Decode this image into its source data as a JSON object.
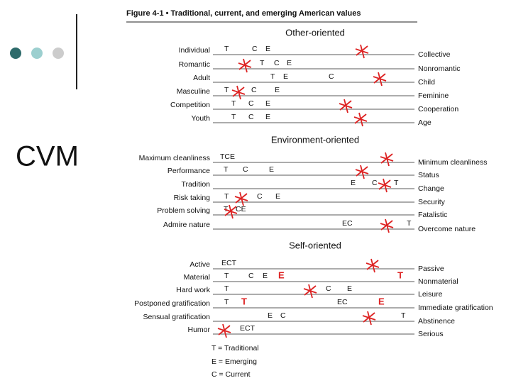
{
  "slide_title": "CVM",
  "figure": {
    "title": "Figure 4-1 • Traditional, current, and emerging American values",
    "sections": [
      {
        "heading": "Other-oriented",
        "rows": [
          {
            "left": "Individual",
            "right": "Collective",
            "marks": [
              "T",
              "C",
              "E"
            ]
          },
          {
            "left": "Romantic",
            "right": "Nonromantic",
            "marks": [
              "T",
              "C",
              "E"
            ]
          },
          {
            "left": "Adult",
            "right": "Child",
            "marks": [
              "T",
              "E",
              "C"
            ]
          },
          {
            "left": "Masculine",
            "right": "Feminine",
            "marks": [
              "T",
              "C",
              "E"
            ]
          },
          {
            "left": "Competition",
            "right": "Cooperation",
            "marks": [
              "T",
              "C",
              "E"
            ]
          },
          {
            "left": "Youth",
            "right": "Age",
            "marks": [
              "T",
              "C",
              "E"
            ]
          }
        ]
      },
      {
        "heading": "Environment-oriented",
        "rows": [
          {
            "left": "Maximum cleanliness",
            "right": "Minimum cleanliness",
            "marks": [
              "TCE"
            ]
          },
          {
            "left": "Performance",
            "right": "Status",
            "marks": [
              "T",
              "C",
              "E"
            ]
          },
          {
            "left": "Tradition",
            "right": "Change",
            "marks": [
              "E",
              "C",
              "T"
            ]
          },
          {
            "left": "Risk taking",
            "right": "Security",
            "marks": [
              "T",
              "C",
              "E"
            ]
          },
          {
            "left": "Problem solving",
            "right": "Fatalistic",
            "marks": [
              "T",
              "CE"
            ]
          },
          {
            "left": "Admire nature",
            "right": "Overcome nature",
            "marks": [
              "EC",
              "T"
            ]
          }
        ]
      },
      {
        "heading": "Self-oriented",
        "rows": [
          {
            "left": "Active",
            "right": "Passive",
            "marks": [
              "ECT"
            ]
          },
          {
            "left": "Material",
            "right": "Nonmaterial",
            "marks": [
              "T",
              "C",
              "E",
              "E",
              "T"
            ]
          },
          {
            "left": "Hard work",
            "right": "Leisure",
            "marks": [
              "T",
              "C",
              "E"
            ]
          },
          {
            "left": "Postponed gratification",
            "right": "Immediate gratification",
            "marks": [
              "T",
              "T",
              "EC",
              "E"
            ]
          },
          {
            "left": "Sensual gratification",
            "right": "Abstinence",
            "marks": [
              "E",
              "C",
              "T"
            ]
          },
          {
            "left": "Humor",
            "right": "Serious",
            "marks": [
              "ECT"
            ]
          }
        ]
      }
    ],
    "legend": [
      "T = Traditional",
      "E = Emerging",
      "C = Current"
    ]
  }
}
